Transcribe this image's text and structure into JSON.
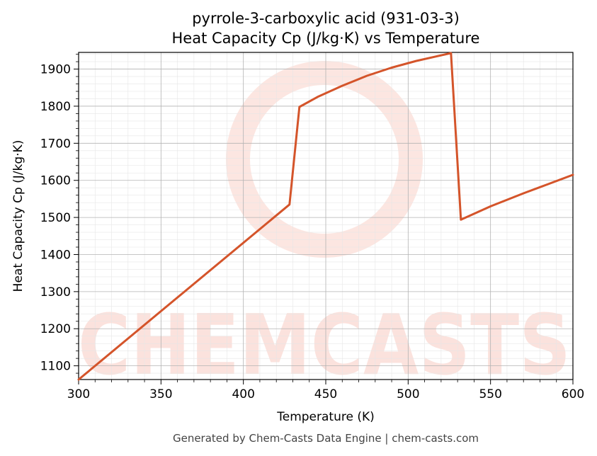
{
  "chart_data": {
    "type": "line",
    "title": "pyrrole-3-carboxylic acid (931-03-3)",
    "subtitle": "Heat Capacity Cp (J/kg·K) vs Temperature",
    "xlabel": "Temperature (K)",
    "ylabel": "Heat Capacity Cp (J/kg·K)",
    "xlim": [
      300,
      600
    ],
    "ylim": [
      1063,
      1945
    ],
    "xticks": [
      300,
      350,
      400,
      450,
      500,
      550,
      600
    ],
    "yticks": [
      1100,
      1200,
      1300,
      1400,
      1500,
      1600,
      1700,
      1800,
      1900
    ],
    "grid": true,
    "color": "#d4542a",
    "series": [
      {
        "x": [
          300,
          428,
          434,
          445,
          460,
          475,
          490,
          505,
          518,
          526,
          532,
          550,
          570,
          585,
          600
        ],
        "values": [
          1063,
          1535,
          1798,
          1825,
          1855,
          1882,
          1904,
          1922,
          1935,
          1943,
          1494,
          1530,
          1565,
          1590,
          1615
        ]
      }
    ]
  },
  "watermark": "CHEMCASTS",
  "footer": "Generated by Chem-Casts Data Engine | chem-casts.com"
}
